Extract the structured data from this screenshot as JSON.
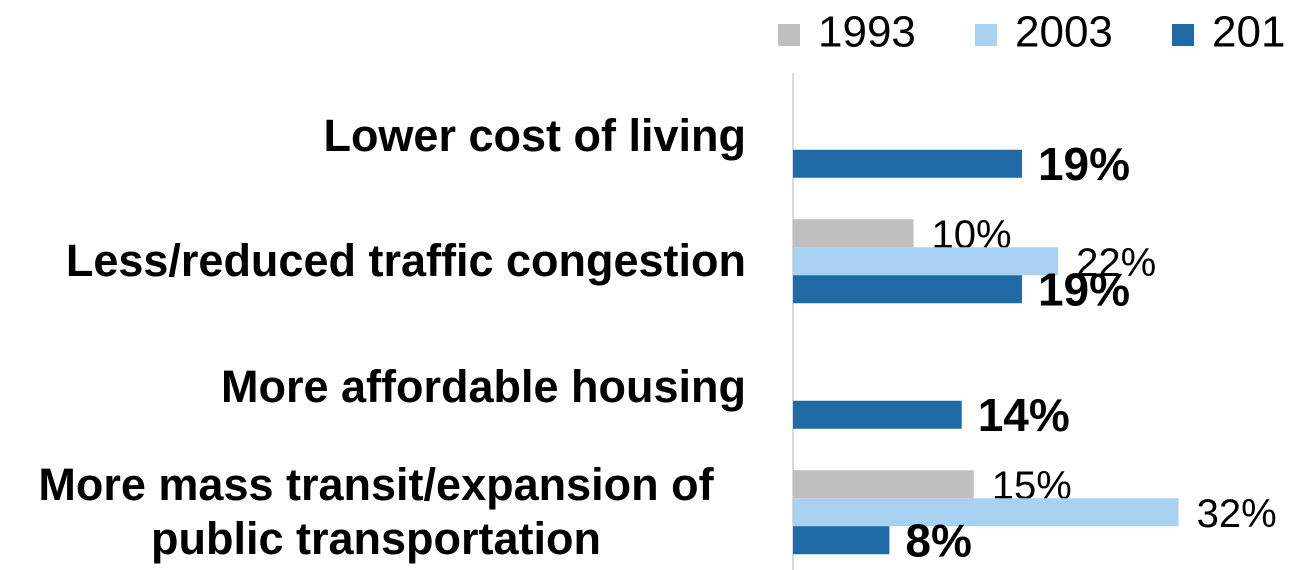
{
  "chart_data": {
    "type": "hbar",
    "categories": [
      "Lower cost of living",
      "Less/reduced traffic congestion",
      "More affordable housing",
      "More mass transit/expansion of public transportation"
    ],
    "series": [
      {
        "name": "1993",
        "color": "#bfbfbf",
        "values": [
          null,
          10,
          null,
          15
        ],
        "value_labels": [
          null,
          "10%",
          null,
          "15%"
        ]
      },
      {
        "name": "2003",
        "color": "#a9d1f1",
        "values": [
          null,
          22,
          null,
          32
        ],
        "value_labels": [
          null,
          "22%",
          null,
          "32%"
        ]
      },
      {
        "name": "201",
        "color": "#1f6aa5",
        "values": [
          19,
          19,
          14,
          8
        ],
        "value_labels": [
          "19%",
          "19%",
          "14%",
          "8%"
        ]
      }
    ],
    "xlim": [
      0,
      40
    ]
  }
}
